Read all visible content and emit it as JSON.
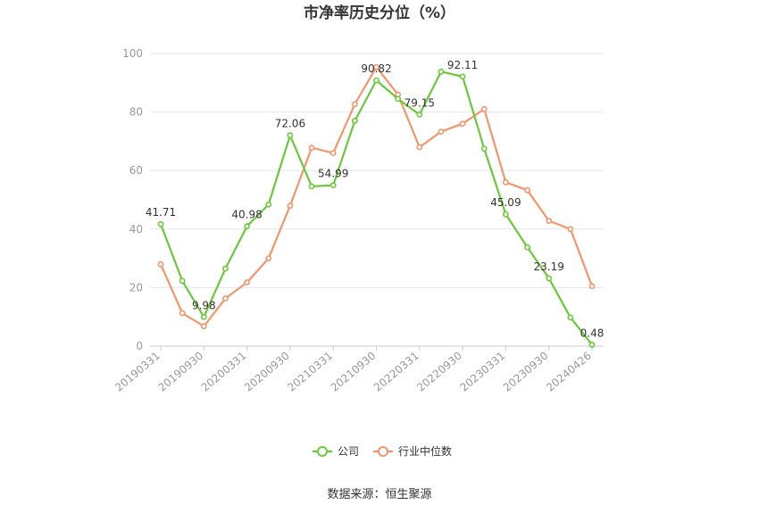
{
  "chart_data": {
    "type": "line",
    "title": "市净率历史分位（%）",
    "ylim": [
      0,
      100
    ],
    "yticks": [
      0,
      20,
      40,
      60,
      80,
      100
    ],
    "grid": true,
    "legend_position": "bottom",
    "x": [
      "20190331",
      "20190630",
      "20190930",
      "20191231",
      "20200331",
      "20200630",
      "20200930",
      "20201231",
      "20210331",
      "20210630",
      "20210930",
      "20211231",
      "20220331",
      "20220630",
      "20220930",
      "20221231",
      "20230331",
      "20230630",
      "20230930",
      "20231231",
      "20240426"
    ],
    "x_tick_labels": [
      "20190331",
      "20190930",
      "20200331",
      "20200930",
      "20210331",
      "20210930",
      "20220331",
      "20220930",
      "20230331",
      "20230930",
      "20240426"
    ],
    "series": [
      {
        "name": "公司",
        "color": "#6ac93a",
        "values": [
          41.71,
          22.3,
          9.98,
          26.5,
          40.98,
          48.4,
          72.06,
          54.6,
          54.99,
          77.0,
          90.82,
          84.5,
          79.15,
          93.8,
          92.11,
          67.5,
          45.09,
          33.8,
          23.19,
          9.8,
          0.48
        ],
        "labels": [
          "41.71",
          "",
          "9.98",
          "",
          "40.98",
          "",
          "72.06",
          "",
          "54.99",
          "",
          "90.82",
          "",
          "79.15",
          "",
          "92.11",
          "",
          "45.09",
          "",
          "23.19",
          "",
          "0.48"
        ]
      },
      {
        "name": "行业中位数",
        "color": "#f4956a",
        "values": [
          28.0,
          11.3,
          6.8,
          16.3,
          21.8,
          30.0,
          48.0,
          67.8,
          66.0,
          82.7,
          95.4,
          86.0,
          68.0,
          73.3,
          76.0,
          81.0,
          56.0,
          53.3,
          42.8,
          40.0,
          20.5
        ]
      }
    ]
  },
  "source": "数据来源：恒生聚源"
}
